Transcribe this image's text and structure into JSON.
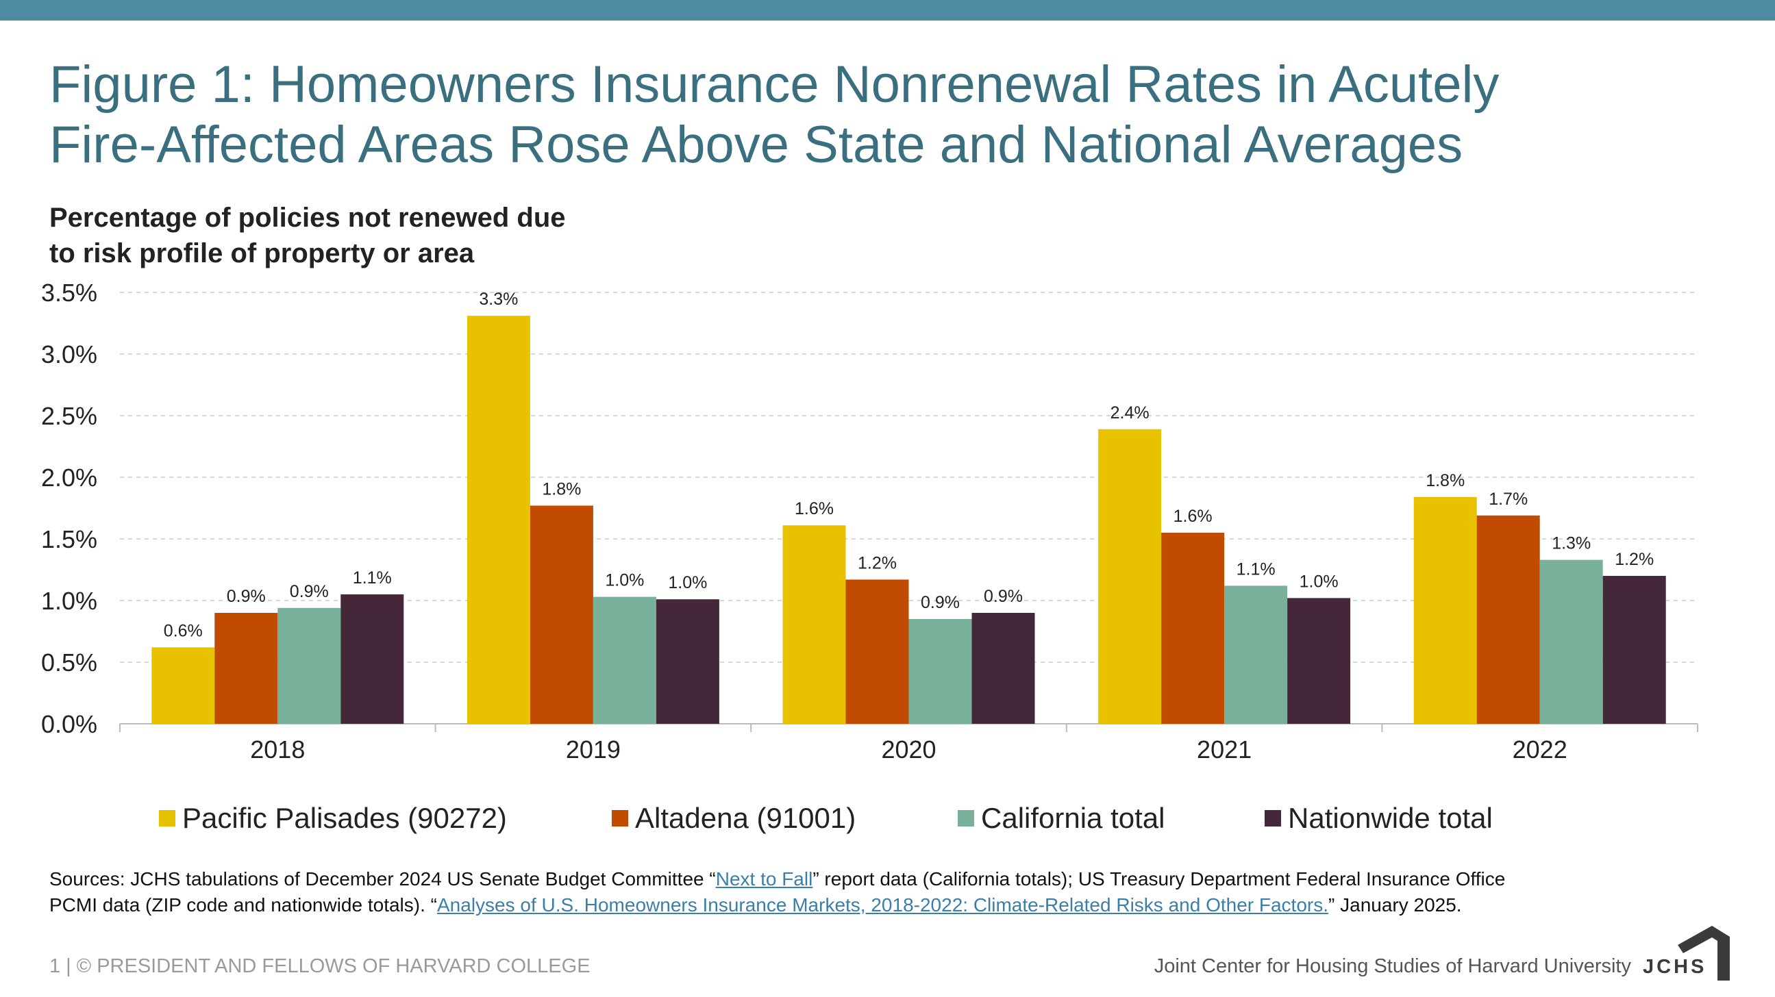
{
  "header": {
    "title_line1": "Figure 1: Homeowners Insurance Nonrenewal Rates in Acutely",
    "title_line2": "Fire-Affected Areas Rose Above State and National Averages",
    "subtitle_line1": "Percentage of policies not renewed due",
    "subtitle_line2": "to risk profile of property or area"
  },
  "chart_data": {
    "type": "bar",
    "title": "Figure 1: Homeowners Insurance Nonrenewal Rates in Acutely Fire-Affected Areas Rose Above State and National Averages",
    "ylabel": "Percentage of policies not renewed due to risk profile of property or area",
    "categories": [
      "2018",
      "2019",
      "2020",
      "2021",
      "2022"
    ],
    "ylim": [
      0,
      3.5
    ],
    "yticks": [
      "0.0%",
      "0.5%",
      "1.0%",
      "1.5%",
      "2.0%",
      "2.5%",
      "3.0%",
      "3.5%"
    ],
    "grid": true,
    "legend_position": "bottom",
    "series": [
      {
        "name": "Pacific Palisades (90272)",
        "color": "#e8c100",
        "values": [
          0.62,
          3.31,
          1.61,
          2.39,
          1.84
        ],
        "labels": [
          "0.6%",
          "3.3%",
          "1.6%",
          "2.4%",
          "1.8%"
        ]
      },
      {
        "name": "Altadena (91001)",
        "color": "#c14b00",
        "values": [
          0.9,
          1.77,
          1.17,
          1.55,
          1.69
        ],
        "labels": [
          "0.9%",
          "1.8%",
          "1.2%",
          "1.6%",
          "1.7%"
        ]
      },
      {
        "name": "California total",
        "color": "#79b09a",
        "values": [
          0.94,
          1.03,
          0.85,
          1.12,
          1.33
        ],
        "labels": [
          "0.9%",
          "1.0%",
          "0.9%",
          "1.1%",
          "1.3%"
        ]
      },
      {
        "name": "Nationwide total",
        "color": "#44283a",
        "values": [
          1.05,
          1.01,
          0.9,
          1.02,
          1.2
        ],
        "labels": [
          "1.1%",
          "1.0%",
          "0.9%",
          "1.0%",
          "1.2%"
        ]
      }
    ]
  },
  "sources": {
    "line1_prefix": "Sources: JCHS tabulations of  December 2024 US Senate Budget Committee “",
    "link1": "Next to Fall",
    "line1_suffix": "” report data (California totals); US Treasury Department Federal Insurance Office",
    "line2_prefix": "PCMI data (ZIP code and nationwide totals). “",
    "link2": "Analyses of U.S. Homeowners Insurance Markets, 2018-2022: Climate-Related Risks and Other Factors.",
    "line2_suffix": "” January 2025."
  },
  "footer": {
    "left": "1 | © PRESIDENT AND FELLOWS OF HARVARD COLLEGE",
    "right": "Joint Center for Housing Studies of Harvard University",
    "logo_text": "JCHS"
  },
  "colors": {
    "topbar": "#4f8aa3",
    "title": "#3a6f80"
  }
}
